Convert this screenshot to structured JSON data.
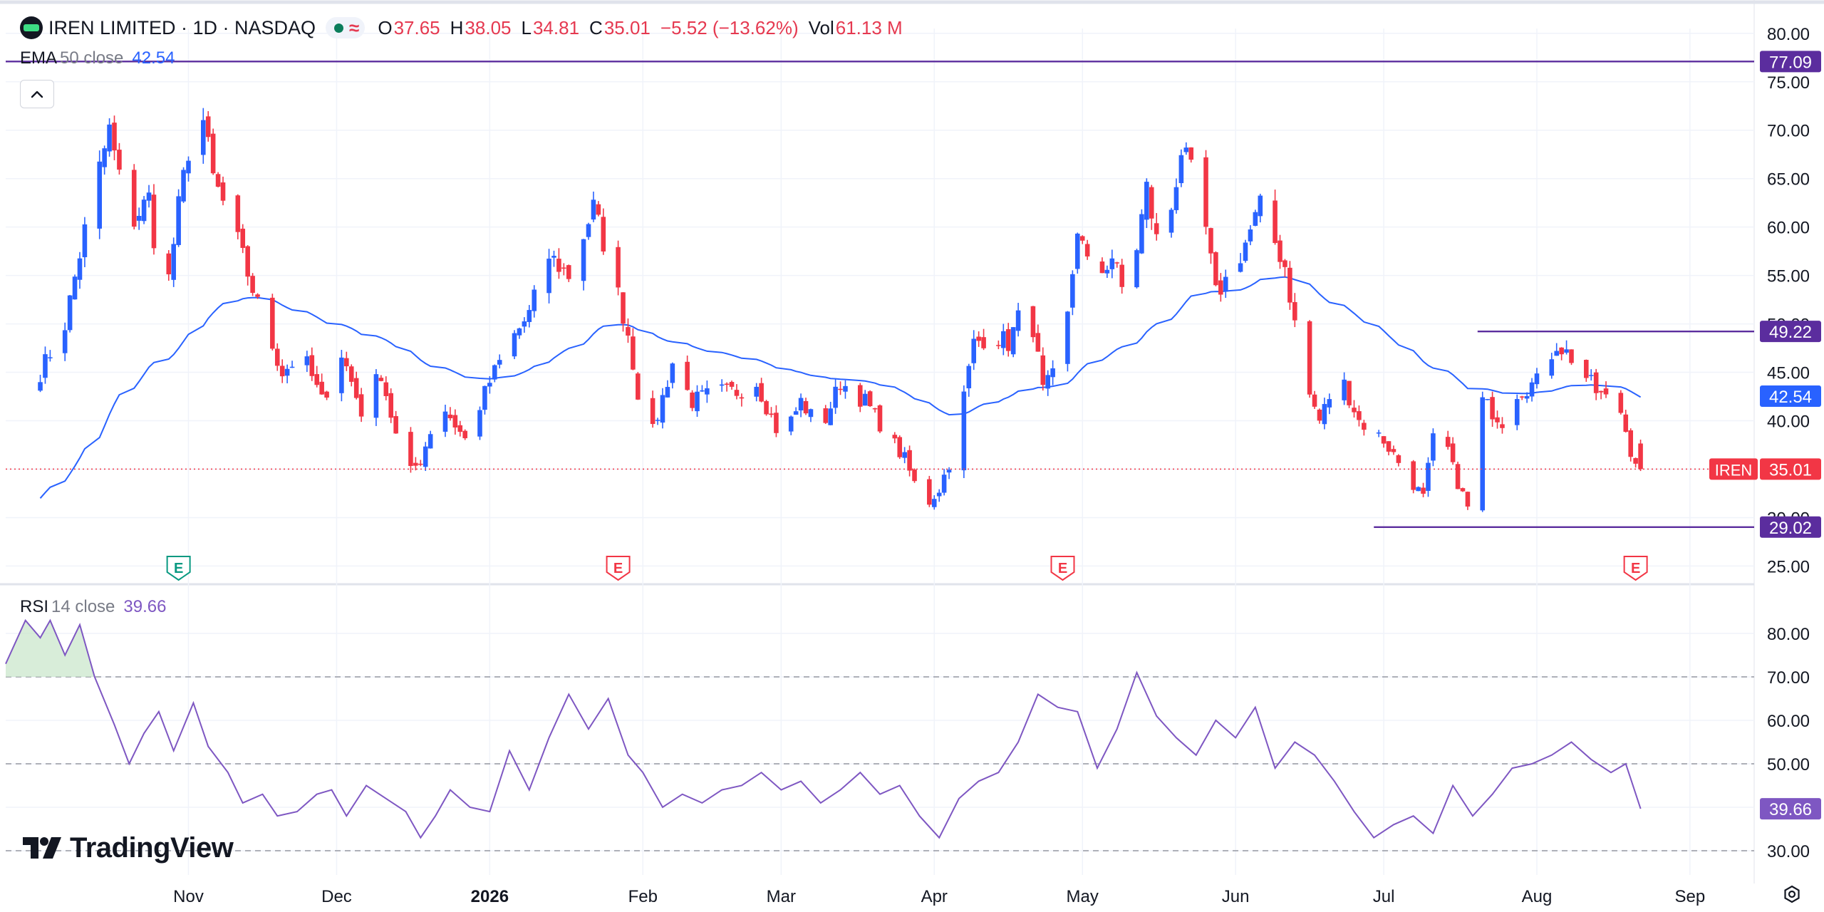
{
  "header": {
    "symbol_title": "IREN LIMITED · 1D · NASDAQ",
    "open_label": "O",
    "open_value": "37.65",
    "high_label": "H",
    "high_value": "38.05",
    "low_label": "L",
    "low_value": "34.81",
    "close_label": "C",
    "close_value": "35.01",
    "change": "−5.52 (−13.62%)",
    "vol_label": "Vol",
    "vol_value": "61.13 M",
    "status_icon": "market-closed-dot",
    "wave_icon": "approx-icon"
  },
  "ema": {
    "name": "EMA",
    "params": "50 close",
    "value": "42.54",
    "color": "#2962ff"
  },
  "rsi": {
    "name": "RSI",
    "params": "14 close",
    "value": "39.66",
    "color": "#7e57c2"
  },
  "branding": {
    "name": "TradingView"
  },
  "colors": {
    "up": "#2962ff",
    "down": "#f23645",
    "hline": "#5b2d9e",
    "price_tag": "#f23645",
    "rsi": "#7e57c2"
  },
  "chart_data": [
    {
      "type": "candlestick",
      "symbol": "IREN",
      "y_ticks": [
        "25.00",
        "30.00",
        "35.00",
        "40.00",
        "45.00",
        "50.00",
        "55.00",
        "60.00",
        "65.00",
        "70.00",
        "75.00",
        "80.00"
      ],
      "ylim": [
        24,
        80.5
      ],
      "x_tick_labels": [
        {
          "day": 30,
          "label": "Nov"
        },
        {
          "day": 60,
          "label": "Dec"
        },
        {
          "day": 91,
          "label": "2026",
          "bold": true
        },
        {
          "day": 122,
          "label": "Feb"
        },
        {
          "day": 150,
          "label": "Mar"
        },
        {
          "day": 181,
          "label": "Apr"
        },
        {
          "day": 211,
          "label": "May"
        },
        {
          "day": 242,
          "label": "Jun"
        },
        {
          "day": 272,
          "label": "Jul"
        },
        {
          "day": 303,
          "label": "Aug"
        },
        {
          "day": 334,
          "label": "Sep"
        }
      ],
      "x_domain_days": [
        -7,
        347
      ],
      "anchors": [
        [
          0,
          45
        ],
        [
          5,
          50
        ],
        [
          10,
          62
        ],
        [
          14,
          70
        ],
        [
          18,
          60
        ],
        [
          22,
          63
        ],
        [
          25,
          51
        ],
        [
          28,
          62
        ],
        [
          32,
          74
        ],
        [
          35,
          65
        ],
        [
          39,
          60
        ],
        [
          44,
          52
        ],
        [
          49,
          45
        ],
        [
          53,
          47
        ],
        [
          57,
          42
        ],
        [
          61,
          47
        ],
        [
          65,
          41
        ],
        [
          69,
          45
        ],
        [
          74,
          34
        ],
        [
          77,
          36
        ],
        [
          81,
          42
        ],
        [
          86,
          38
        ],
        [
          91,
          44
        ],
        [
          95,
          48
        ],
        [
          99,
          51
        ],
        [
          103,
          57
        ],
        [
          107,
          55
        ],
        [
          112,
          62
        ],
        [
          116,
          55
        ],
        [
          119,
          49
        ],
        [
          123,
          37
        ],
        [
          128,
          46
        ],
        [
          132,
          42
        ],
        [
          137,
          43
        ],
        [
          141,
          43
        ],
        [
          145,
          44
        ],
        [
          150,
          38
        ],
        [
          154,
          42
        ],
        [
          158,
          39
        ],
        [
          162,
          44
        ],
        [
          167,
          42
        ],
        [
          171,
          39
        ],
        [
          175,
          36
        ],
        [
          179,
          31
        ],
        [
          182,
          33
        ],
        [
          185,
          37
        ],
        [
          189,
          48
        ],
        [
          193,
          49
        ],
        [
          196,
          48
        ],
        [
          200,
          53
        ],
        [
          203,
          43
        ],
        [
          207,
          46
        ],
        [
          210,
          60
        ],
        [
          213,
          54
        ],
        [
          217,
          57
        ],
        [
          220,
          52
        ],
        [
          224,
          64
        ],
        [
          227,
          56
        ],
        [
          231,
          68
        ],
        [
          235,
          63
        ],
        [
          238,
          53
        ],
        [
          242,
          56
        ],
        [
          247,
          62
        ],
        [
          252,
          56
        ],
        [
          256,
          44
        ],
        [
          259,
          40
        ],
        [
          263,
          45
        ],
        [
          267,
          40
        ],
        [
          272,
          38
        ],
        [
          276,
          35
        ],
        [
          280,
          32
        ],
        [
          283,
          41
        ],
        [
          286,
          35
        ],
        [
          289,
          31
        ],
        [
          292,
          42
        ],
        [
          296,
          40
        ],
        [
          299,
          43
        ],
        [
          303,
          44
        ],
        [
          307,
          48
        ],
        [
          311,
          46
        ],
        [
          315,
          43
        ],
        [
          320,
          41
        ],
        [
          322,
          37
        ],
        [
          324,
          35
        ]
      ],
      "current_price": 35.01,
      "price_label": "IREN",
      "price_tags": [
        "77.09",
        "49.22",
        "42.54",
        "35.01",
        "29.02"
      ],
      "horizontal_lines": [
        {
          "value": 77.09,
          "label": "77.09",
          "from_day": -7
        },
        {
          "value": 49.22,
          "label": "49.22",
          "from_day": 291
        },
        {
          "value": 29.02,
          "label": "29.02",
          "from_day": 270
        }
      ],
      "earnings": [
        {
          "day": 28,
          "label": "E",
          "color": "#089981"
        },
        {
          "day": 117,
          "label": "E",
          "color": "#f23645"
        },
        {
          "day": 207,
          "label": "E",
          "color": "#f23645"
        },
        {
          "day": 323,
          "label": "E",
          "color": "#f23645"
        }
      ],
      "series": [
        {
          "name": "EMA 50 close",
          "color": "#2962ff",
          "last": 42.54
        }
      ]
    },
    {
      "type": "line",
      "name": "RSI 14 close",
      "y_ticks": [
        "30.00",
        "40.00",
        "50.00",
        "60.00",
        "70.00",
        "80.00"
      ],
      "ylim": [
        27,
        87
      ],
      "bands": [
        70,
        50,
        30
      ],
      "last_value": "39.66",
      "anchors": [
        [
          -7,
          73
        ],
        [
          -3,
          83
        ],
        [
          0,
          79
        ],
        [
          2,
          83
        ],
        [
          5,
          75
        ],
        [
          8,
          82
        ],
        [
          11,
          70
        ],
        [
          15,
          59
        ],
        [
          18,
          50
        ],
        [
          21,
          57
        ],
        [
          24,
          62
        ],
        [
          27,
          53
        ],
        [
          31,
          64
        ],
        [
          34,
          54
        ],
        [
          38,
          48
        ],
        [
          41,
          41
        ],
        [
          45,
          43
        ],
        [
          48,
          38
        ],
        [
          52,
          39
        ],
        [
          56,
          43
        ],
        [
          59,
          44
        ],
        [
          62,
          38
        ],
        [
          66,
          45
        ],
        [
          70,
          42
        ],
        [
          74,
          39
        ],
        [
          77,
          33
        ],
        [
          80,
          38
        ],
        [
          83,
          44
        ],
        [
          87,
          40
        ],
        [
          91,
          39
        ],
        [
          95,
          53
        ],
        [
          99,
          44
        ],
        [
          103,
          56
        ],
        [
          107,
          66
        ],
        [
          111,
          58
        ],
        [
          115,
          65
        ],
        [
          119,
          52
        ],
        [
          122,
          48
        ],
        [
          126,
          40
        ],
        [
          130,
          43
        ],
        [
          134,
          41
        ],
        [
          138,
          44
        ],
        [
          142,
          45
        ],
        [
          146,
          48
        ],
        [
          150,
          44
        ],
        [
          154,
          46
        ],
        [
          158,
          41
        ],
        [
          162,
          44
        ],
        [
          166,
          48
        ],
        [
          170,
          43
        ],
        [
          174,
          45
        ],
        [
          178,
          38
        ],
        [
          182,
          33
        ],
        [
          186,
          42
        ],
        [
          190,
          46
        ],
        [
          194,
          48
        ],
        [
          198,
          55
        ],
        [
          202,
          66
        ],
        [
          206,
          63
        ],
        [
          210,
          62
        ],
        [
          214,
          49
        ],
        [
          218,
          58
        ],
        [
          222,
          71
        ],
        [
          226,
          61
        ],
        [
          230,
          56
        ],
        [
          234,
          52
        ],
        [
          238,
          60
        ],
        [
          242,
          56
        ],
        [
          246,
          63
        ],
        [
          250,
          49
        ],
        [
          254,
          55
        ],
        [
          258,
          52
        ],
        [
          262,
          46
        ],
        [
          266,
          39
        ],
        [
          270,
          33
        ],
        [
          274,
          36
        ],
        [
          278,
          38
        ],
        [
          282,
          34
        ],
        [
          286,
          45
        ],
        [
          290,
          38
        ],
        [
          294,
          43
        ],
        [
          298,
          49
        ],
        [
          302,
          50
        ],
        [
          306,
          52
        ],
        [
          310,
          55
        ],
        [
          314,
          51
        ],
        [
          318,
          48
        ],
        [
          321,
          50
        ],
        [
          324,
          39.66
        ]
      ]
    }
  ]
}
